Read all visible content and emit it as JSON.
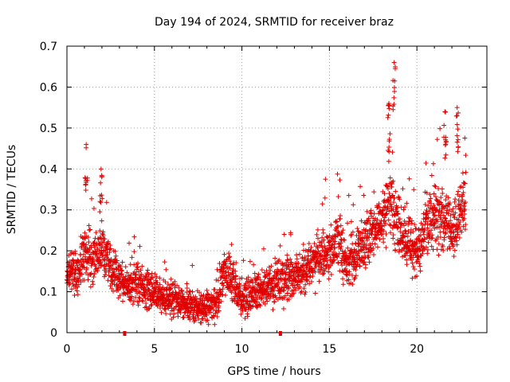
{
  "chart_data": {
    "type": "scatter",
    "title": "Day 194 of 2024, SRMTID for receiver braz",
    "xlabel": "GPS time / hours",
    "ylabel": "SRMTID / TECUs",
    "xlim": [
      0,
      24
    ],
    "ylim": [
      0,
      0.7
    ],
    "xticks": [
      0,
      5,
      10,
      15,
      20
    ],
    "yticks": [
      0,
      0.1,
      0.2,
      0.3,
      0.4,
      0.5,
      0.6,
      0.7
    ],
    "xtick_labels": [
      "0",
      "5",
      "10",
      "15",
      "20"
    ],
    "ytick_labels": [
      "0",
      "0.1",
      "0.2",
      "0.3",
      "0.4",
      "0.5",
      "0.6",
      "0.7"
    ],
    "grid": true,
    "marker": "+",
    "color": "#e00000",
    "series": [
      {
        "name": "SRMTID",
        "trend": {
          "x": [
            0,
            0.5,
            1,
            1.5,
            2,
            2.5,
            3,
            3.5,
            4,
            5,
            6,
            7,
            8,
            8.5,
            9,
            9.5,
            10,
            11,
            12,
            13,
            14,
            15,
            15.5,
            16,
            17,
            18,
            18.5,
            19,
            20,
            21,
            22,
            22.7
          ],
          "y": [
            0.15,
            0.14,
            0.2,
            0.18,
            0.2,
            0.17,
            0.13,
            0.12,
            0.12,
            0.1,
            0.08,
            0.07,
            0.06,
            0.07,
            0.15,
            0.12,
            0.08,
            0.1,
            0.12,
            0.13,
            0.17,
            0.2,
            0.23,
            0.16,
            0.22,
            0.27,
            0.33,
            0.25,
            0.2,
            0.3,
            0.25,
            0.32
          ]
        },
        "peaks": [
          {
            "x": 1.1,
            "y": 0.46
          },
          {
            "x": 1.95,
            "y": 0.4
          },
          {
            "x": 18.4,
            "y": 0.56
          },
          {
            "x": 18.7,
            "y": 0.66
          },
          {
            "x": 21.6,
            "y": 0.54
          },
          {
            "x": 22.3,
            "y": 0.55
          }
        ],
        "x_start": 0,
        "x_end": 22.8
      }
    ],
    "missing_data_markers_x": [
      3.3,
      12.2
    ]
  }
}
